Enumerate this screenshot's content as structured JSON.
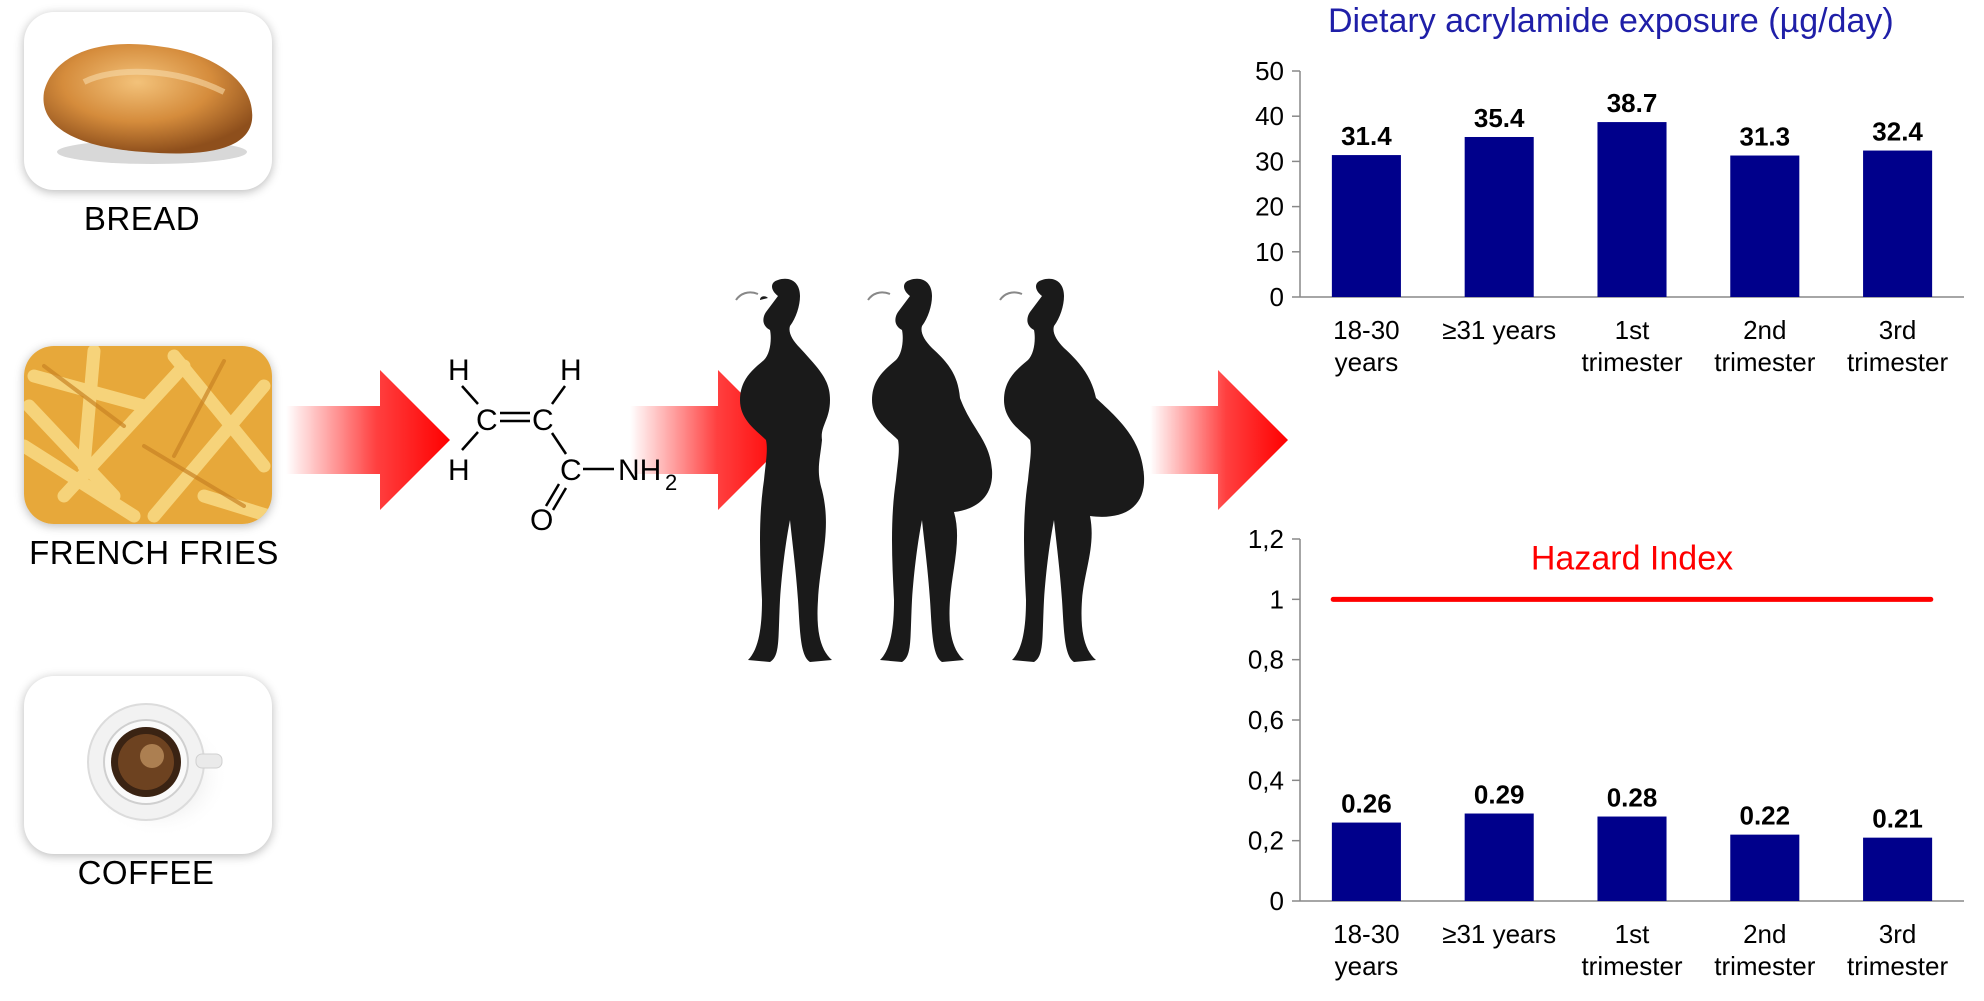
{
  "foods": [
    {
      "label": "BREAD",
      "icon": "bread-image"
    },
    {
      "label": "FRENCH FRIES",
      "icon": "french-fries-image"
    },
    {
      "label": "COFFEE",
      "icon": "coffee-cup-image"
    }
  ],
  "molecule": {
    "atoms": [
      "H",
      "H",
      "C",
      "C",
      "H",
      "C",
      "O",
      "NH",
      "2"
    ]
  },
  "colors": {
    "arrow": "#ff0000",
    "bar": "#00008b",
    "hazard_line": "#ff0000",
    "title": "#1f1fa8",
    "silhouette": "#1a1a1a"
  },
  "chart_data": [
    {
      "type": "bar",
      "title": "Dietary acrylamide exposure (µg/day)",
      "categories": [
        [
          "18-30",
          "years"
        ],
        [
          "≥31 years"
        ],
        [
          "1st",
          "trimester"
        ],
        [
          "2nd",
          "trimester"
        ],
        [
          "3rd",
          "trimester"
        ]
      ],
      "values": [
        31.4,
        35.4,
        38.7,
        31.3,
        32.4
      ],
      "value_labels": [
        "31.4",
        "35.4",
        "38.7",
        "31.3",
        "32.4"
      ],
      "yticks": [
        "0",
        "10",
        "20",
        "30",
        "40",
        "50"
      ],
      "ylim": [
        0,
        50
      ],
      "grid": false
    },
    {
      "type": "bar",
      "title": "",
      "categories": [
        [
          "18-30",
          "years"
        ],
        [
          "≥31 years"
        ],
        [
          "1st",
          "trimester"
        ],
        [
          "2nd",
          "trimester"
        ],
        [
          "3rd",
          "trimester"
        ]
      ],
      "values": [
        0.26,
        0.29,
        0.28,
        0.22,
        0.21
      ],
      "value_labels": [
        "0.26",
        "0.29",
        "0.28",
        "0.22",
        "0.21"
      ],
      "yticks": [
        "0",
        "0,2",
        "0,4",
        "0,6",
        "0,8",
        "1",
        "1,2"
      ],
      "ylim": [
        0,
        1.2
      ],
      "reference_line": {
        "value": 1,
        "label": "Hazard Index"
      },
      "grid": false
    }
  ]
}
